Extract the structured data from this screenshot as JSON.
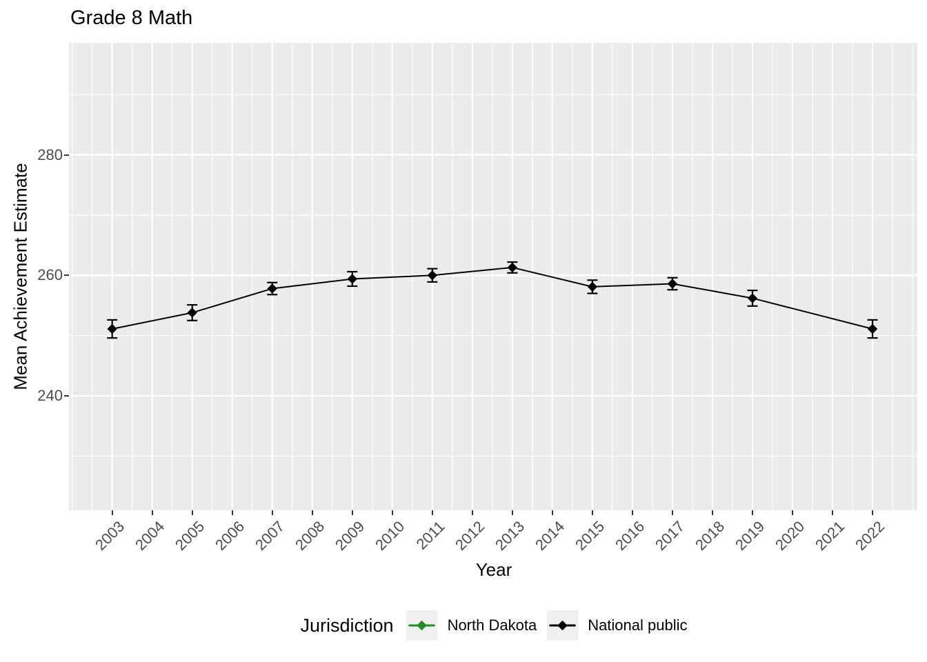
{
  "title": "Grade 8 Math",
  "x_axis": {
    "title": "Year",
    "tick_labels": [
      "2003",
      "2004",
      "2005",
      "2006",
      "2007",
      "2008",
      "2009",
      "2010",
      "2011",
      "2012",
      "2013",
      "2014",
      "2015",
      "2016",
      "2017",
      "2018",
      "2019",
      "2020",
      "2021",
      "2022"
    ]
  },
  "y_axis": {
    "title": "Mean Achievement Estimate",
    "tick_labels": [
      "240",
      "260",
      "280"
    ]
  },
  "legend": {
    "title": "Jurisdiction",
    "entries": [
      {
        "label": "North Dakota",
        "color": "#228B22"
      },
      {
        "label": "National public",
        "color": "#000000"
      }
    ]
  },
  "colors": {
    "panel_background": "#EBEBEB",
    "gridline": "#FFFFFF",
    "tick_label": "#4D4D4D",
    "axis_text": "#000000",
    "legend_key_background": "#F0F0F0"
  },
  "chart_data": {
    "type": "line",
    "title": "Grade 8 Math",
    "xlabel": "Year",
    "ylabel": "Mean Achievement Estimate",
    "xlim": [
      2001.92,
      2023.12
    ],
    "ylim": [
      221.0,
      298.6
    ],
    "x_major_breaks": [
      2003,
      2004,
      2005,
      2006,
      2007,
      2008,
      2009,
      2010,
      2011,
      2012,
      2013,
      2014,
      2015,
      2016,
      2017,
      2018,
      2019,
      2020,
      2021,
      2022
    ],
    "x_minor_breaks": [
      2002,
      2002.5,
      2003.5,
      2004.5,
      2005.5,
      2006.5,
      2007.5,
      2008.5,
      2009.5,
      2010.5,
      2011.5,
      2012.5,
      2013.5,
      2014.5,
      2015.5,
      2016.5,
      2017.5,
      2018.5,
      2019.5,
      2020.5,
      2021.5,
      2022.5,
      2023
    ],
    "y_major_breaks": [
      240,
      260,
      280
    ],
    "y_minor_breaks": [
      230,
      250,
      270,
      290
    ],
    "grid": "white major and minor gridlines on gray panel",
    "legend_position": "bottom",
    "point_shape": "diamond",
    "error_bars": true,
    "series": [
      {
        "name": "North Dakota",
        "color": "#228B22",
        "x": [],
        "y": [],
        "y_error": []
      },
      {
        "name": "National public",
        "color": "#000000",
        "x": [
          2003,
          2005,
          2007,
          2009,
          2011,
          2013,
          2015,
          2017,
          2019,
          2022
        ],
        "y": [
          251.1,
          253.8,
          257.8,
          259.4,
          260.0,
          261.3,
          258.1,
          258.6,
          256.2,
          251.1
        ],
        "y_error": [
          1.5,
          1.3,
          1.0,
          1.2,
          1.1,
          0.9,
          1.1,
          1.0,
          1.3,
          1.5
        ]
      }
    ]
  }
}
